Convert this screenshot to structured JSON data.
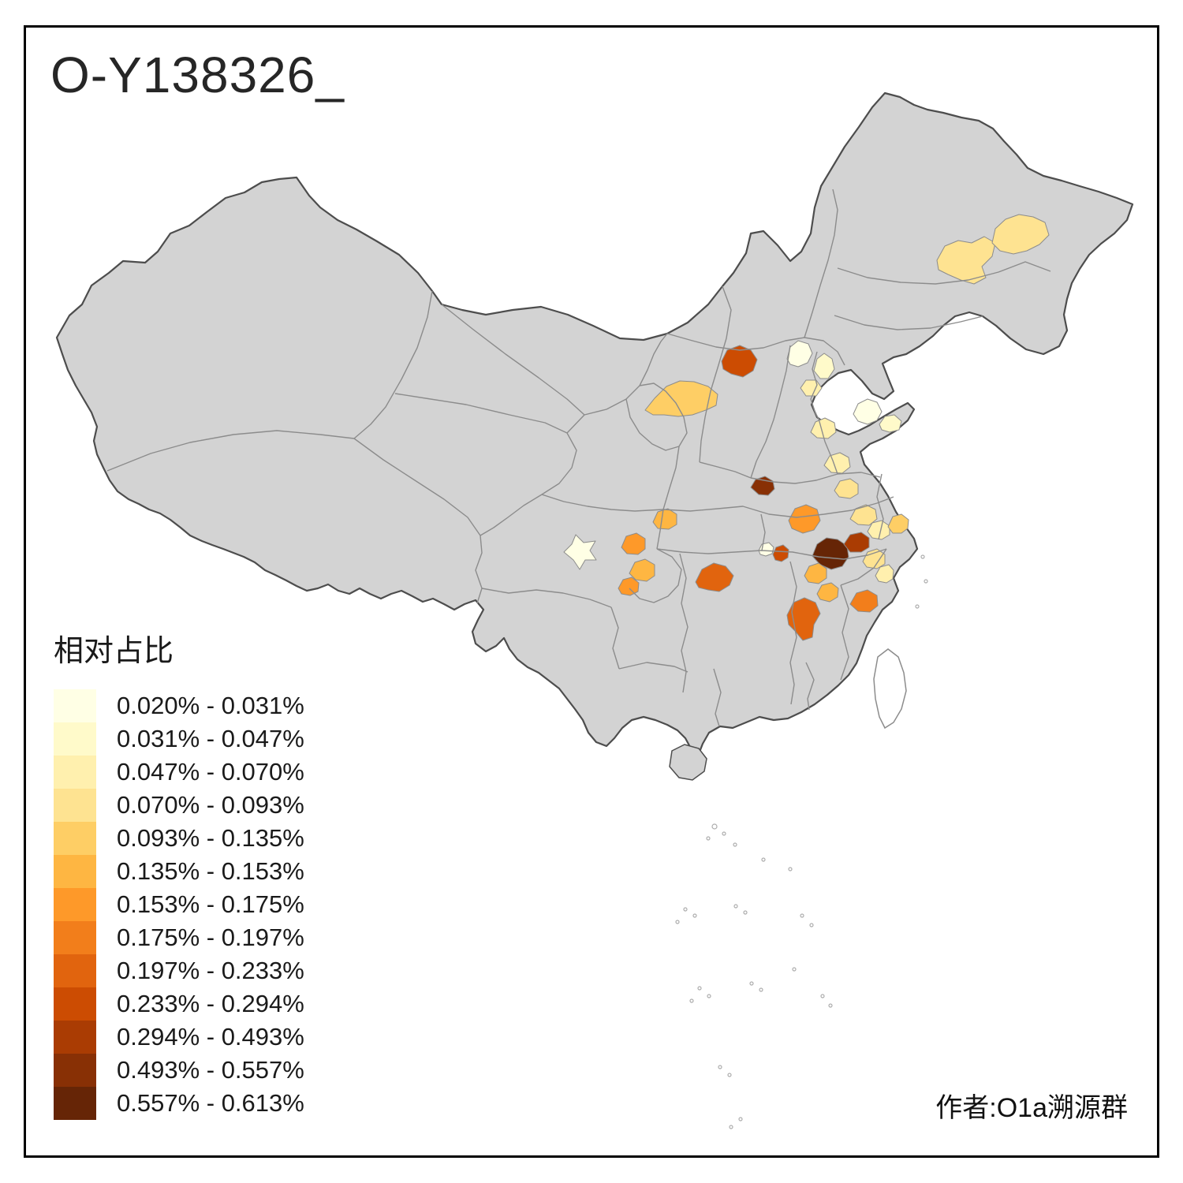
{
  "title": "O-Y138326_",
  "attribution": "作者:O1a溯源群",
  "legend": {
    "title": "相对占比",
    "classes": [
      {
        "label": "0.020% - 0.031%",
        "color": "#FFFFE5"
      },
      {
        "label": "0.031% - 0.047%",
        "color": "#FFFACA"
      },
      {
        "label": "0.047% - 0.070%",
        "color": "#FFF0AE"
      },
      {
        "label": "0.070% - 0.093%",
        "color": "#FEE391"
      },
      {
        "label": "0.093% - 0.135%",
        "color": "#FECE65"
      },
      {
        "label": "0.135% - 0.153%",
        "color": "#FEB642"
      },
      {
        "label": "0.153% - 0.175%",
        "color": "#FE9929"
      },
      {
        "label": "0.175% - 0.197%",
        "color": "#F27E1B"
      },
      {
        "label": "0.197% - 0.233%",
        "color": "#E1640E"
      },
      {
        "label": "0.233% - 0.294%",
        "color": "#CC4C02"
      },
      {
        "label": "0.294% - 0.493%",
        "color": "#AA3C03"
      },
      {
        "label": "0.493% - 0.557%",
        "color": "#883005"
      },
      {
        "label": "0.557% - 0.613%",
        "color": "#662506"
      }
    ]
  },
  "map": {
    "base_fill": "#D3D3D3",
    "boundary_color": "#4D4D4D",
    "province_border_color": "#8C8C8C",
    "taiwan_fill": "#FFFFFF",
    "regions": [
      {
        "id": "heilongjiang-west",
        "class": 3
      },
      {
        "id": "heilongjiang-east",
        "class": 3
      },
      {
        "id": "inner-mongolia-red",
        "class": 9
      },
      {
        "id": "ordos-region",
        "class": 4
      },
      {
        "id": "beijing",
        "class": 0
      },
      {
        "id": "tianjin",
        "class": 1
      },
      {
        "id": "hebei-south",
        "class": 2
      },
      {
        "id": "shandong-west",
        "class": 0
      },
      {
        "id": "shandong-peninsula",
        "class": 1
      },
      {
        "id": "shanxi-south",
        "class": 2
      },
      {
        "id": "henan-north",
        "class": 2
      },
      {
        "id": "henan-dark",
        "class": 11
      },
      {
        "id": "henan-east",
        "class": 3
      },
      {
        "id": "hubei-north-orange",
        "class": 6
      },
      {
        "id": "anhui-north",
        "class": 3
      },
      {
        "id": "anhui-mid",
        "class": 2
      },
      {
        "id": "jiangsu-coast",
        "class": 4
      },
      {
        "id": "wuhan-red",
        "class": 9
      },
      {
        "id": "wuhan-cream",
        "class": 0
      },
      {
        "id": "delta-darkest",
        "class": 12
      },
      {
        "id": "delta-dark",
        "class": 10
      },
      {
        "id": "delta-orange-1",
        "class": 5
      },
      {
        "id": "delta-orange-2",
        "class": 5
      },
      {
        "id": "zhejiang-north",
        "class": 3
      },
      {
        "id": "zhejiang-mid",
        "class": 2
      },
      {
        "id": "jiangxi-northeast",
        "class": 7
      },
      {
        "id": "jiangxi-west",
        "class": 8
      },
      {
        "id": "hunan-east",
        "class": 8
      },
      {
        "id": "chengdu",
        "class": 0
      },
      {
        "id": "sichuan-east-1",
        "class": 6
      },
      {
        "id": "sichuan-east-2",
        "class": 5
      },
      {
        "id": "sichuan-north",
        "class": 5
      },
      {
        "id": "sichuan-south",
        "class": 6
      }
    ]
  }
}
